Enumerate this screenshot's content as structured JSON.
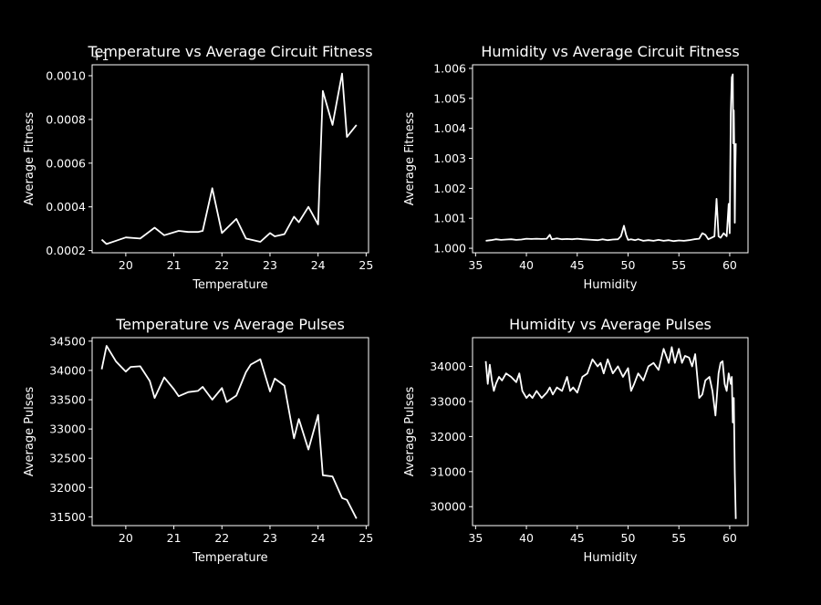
{
  "chart_data": [
    {
      "type": "line",
      "title": "Temperature vs Average Circuit Fitness",
      "xlabel": "Temperature",
      "ylabel": "Average Fitness",
      "y_offset_label": "+1",
      "xlim": [
        19.3,
        25.05
      ],
      "ylim": [
        0.00019,
        0.00105
      ],
      "xticks": [
        20,
        21,
        22,
        23,
        24,
        25
      ],
      "xtick_labels": [
        "20",
        "21",
        "22",
        "23",
        "24",
        "25"
      ],
      "yticks": [
        0.0002,
        0.0004,
        0.0006,
        0.0008,
        0.001
      ],
      "ytick_labels": [
        "0.0002",
        "0.0004",
        "0.0006",
        "0.0008",
        "0.0010"
      ],
      "grid": false,
      "x": [
        19.5,
        19.6,
        19.8,
        20.0,
        20.3,
        20.6,
        20.8,
        21.1,
        21.3,
        21.5,
        21.6,
        21.8,
        22.0,
        22.3,
        22.5,
        22.8,
        23.0,
        23.1,
        23.3,
        23.5,
        23.6,
        23.8,
        24.0,
        24.1,
        24.3,
        24.5,
        24.6,
        24.8
      ],
      "y": [
        0.00025,
        0.00023,
        0.000245,
        0.00026,
        0.000255,
        0.000305,
        0.00027,
        0.00029,
        0.000285,
        0.000285,
        0.00029,
        0.000485,
        0.00028,
        0.000345,
        0.000255,
        0.00024,
        0.00028,
        0.000265,
        0.000275,
        0.000355,
        0.00033,
        0.0004,
        0.00032,
        0.00093,
        0.000775,
        0.00101,
        0.00072,
        0.000775
      ]
    },
    {
      "type": "line",
      "title": "Humidity vs Average Circuit Fitness",
      "xlabel": "Humidity",
      "ylabel": "Average Fitness",
      "xlim": [
        34.7,
        61.8
      ],
      "ylim": [
        0.99985,
        1.00612
      ],
      "xticks": [
        35,
        40,
        45,
        50,
        55,
        60
      ],
      "xtick_labels": [
        "35",
        "40",
        "45",
        "50",
        "55",
        "60"
      ],
      "yticks": [
        1.0,
        1.001,
        1.002,
        1.003,
        1.004,
        1.005,
        1.006
      ],
      "ytick_labels": [
        "1.000",
        "1.001",
        "1.002",
        "1.003",
        "1.004",
        "1.005",
        "1.006"
      ],
      "grid": false,
      "x": [
        36.0,
        36.5,
        37.0,
        37.5,
        38.0,
        38.5,
        39.0,
        39.5,
        40.0,
        40.5,
        41.0,
        41.5,
        42.0,
        42.3,
        42.5,
        43.0,
        43.5,
        44.0,
        44.5,
        45.0,
        45.5,
        46.0,
        46.5,
        47.0,
        47.5,
        48.0,
        48.5,
        49.0,
        49.3,
        49.6,
        49.8,
        50.0,
        50.3,
        50.7,
        51.0,
        51.5,
        52.0,
        52.5,
        53.0,
        53.5,
        54.0,
        54.5,
        55.0,
        55.5,
        56.0,
        56.5,
        57.0,
        57.3,
        57.6,
        57.9,
        58.2,
        58.5,
        58.7,
        58.9,
        59.1,
        59.4,
        59.7,
        59.9,
        60.0,
        60.1,
        60.2,
        60.3,
        60.35,
        60.4,
        60.45,
        60.5,
        60.55,
        60.6
      ],
      "y": [
        1.00025,
        1.00027,
        1.0003,
        1.00028,
        1.00029,
        1.0003,
        1.00028,
        1.00029,
        1.00032,
        1.00031,
        1.00032,
        1.00031,
        1.00032,
        1.00045,
        1.0003,
        1.00033,
        1.0003,
        1.00031,
        1.0003,
        1.00032,
        1.0003,
        1.00029,
        1.00028,
        1.00027,
        1.0003,
        1.00027,
        1.00029,
        1.0003,
        1.0004,
        1.00075,
        1.00045,
        1.00028,
        1.0003,
        1.00027,
        1.0003,
        1.00025,
        1.00027,
        1.00025,
        1.00028,
        1.00025,
        1.00027,
        1.00024,
        1.00026,
        1.00025,
        1.00027,
        1.0003,
        1.00032,
        1.0005,
        1.00045,
        1.0003,
        1.00035,
        1.0004,
        1.00165,
        1.0004,
        1.00035,
        1.0005,
        1.0004,
        1.00148,
        1.0005,
        1.0045,
        1.0057,
        1.0058,
        1.0035,
        1.0046,
        1.0032,
        1.00085,
        1.0026,
        1.0035
      ]
    },
    {
      "type": "line",
      "title": "Temperature vs Average Pulses",
      "xlabel": "Temperature",
      "ylabel": "Average Pulses",
      "xlim": [
        19.3,
        25.05
      ],
      "ylim": [
        31350,
        34560
      ],
      "xticks": [
        20,
        21,
        22,
        23,
        24,
        25
      ],
      "xtick_labels": [
        "20",
        "21",
        "22",
        "23",
        "24",
        "25"
      ],
      "yticks": [
        31500,
        32000,
        32500,
        33000,
        33500,
        34000,
        34500
      ],
      "ytick_labels": [
        "31500",
        "32000",
        "32500",
        "33000",
        "33500",
        "34000",
        "34500"
      ],
      "grid": false,
      "x": [
        19.5,
        19.6,
        19.8,
        20.0,
        20.1,
        20.3,
        20.5,
        20.6,
        20.8,
        21.0,
        21.1,
        21.3,
        21.5,
        21.6,
        21.8,
        22.0,
        22.1,
        22.3,
        22.5,
        22.6,
        22.8,
        23.0,
        23.1,
        23.3,
        23.5,
        23.6,
        23.8,
        24.0,
        24.1,
        24.3,
        24.5,
        24.6,
        24.8
      ],
      "y": [
        34020,
        34420,
        34150,
        33980,
        34060,
        34070,
        33820,
        33530,
        33880,
        33680,
        33560,
        33630,
        33650,
        33720,
        33500,
        33700,
        33460,
        33570,
        33970,
        34100,
        34190,
        33640,
        33860,
        33740,
        32840,
        33170,
        32650,
        33240,
        32210,
        32190,
        31820,
        31790,
        31470
      ]
    },
    {
      "type": "line",
      "title": "Humidity vs Average Pulses",
      "xlabel": "Humidity",
      "ylabel": "Average Pulses",
      "xlim": [
        34.7,
        61.8
      ],
      "ylim": [
        29460,
        34820
      ],
      "xticks": [
        35,
        40,
        45,
        50,
        55,
        60
      ],
      "xtick_labels": [
        "35",
        "40",
        "45",
        "50",
        "55",
        "60"
      ],
      "yticks": [
        30000,
        31000,
        32000,
        33000,
        34000
      ],
      "ytick_labels": [
        "30000",
        "31000",
        "32000",
        "33000",
        "34000"
      ],
      "grid": false,
      "x": [
        36.0,
        36.2,
        36.4,
        36.6,
        36.8,
        37.0,
        37.3,
        37.6,
        38.0,
        38.5,
        39.0,
        39.3,
        39.6,
        40.0,
        40.3,
        40.6,
        41.0,
        41.5,
        42.0,
        42.3,
        42.6,
        43.0,
        43.5,
        44.0,
        44.3,
        44.6,
        45.0,
        45.5,
        46.0,
        46.5,
        47.0,
        47.3,
        47.6,
        48.0,
        48.5,
        49.0,
        49.5,
        50.0,
        50.3,
        50.6,
        51.0,
        51.5,
        52.0,
        52.5,
        53.0,
        53.5,
        54.0,
        54.3,
        54.6,
        55.0,
        55.3,
        55.6,
        56.0,
        56.3,
        56.6,
        57.0,
        57.3,
        57.6,
        58.0,
        58.3,
        58.6,
        58.9,
        59.1,
        59.3,
        59.5,
        59.7,
        59.9,
        60.1,
        60.2,
        60.3,
        60.4,
        60.5,
        60.6
      ],
      "y": [
        34150,
        33500,
        34050,
        33600,
        33300,
        33500,
        33700,
        33600,
        33800,
        33700,
        33550,
        33800,
        33300,
        33100,
        33200,
        33100,
        33300,
        33100,
        33250,
        33400,
        33200,
        33400,
        33300,
        33700,
        33300,
        33400,
        33250,
        33700,
        33800,
        34200,
        34000,
        34100,
        33800,
        34200,
        33800,
        34000,
        33700,
        33950,
        33300,
        33500,
        33800,
        33600,
        34000,
        34100,
        33900,
        34500,
        34100,
        34550,
        34100,
        34500,
        34100,
        34300,
        34250,
        34000,
        34350,
        33100,
        33200,
        33600,
        33700,
        33300,
        32600,
        33800,
        34100,
        34150,
        33500,
        33300,
        33800,
        33500,
        33700,
        32400,
        33100,
        30950,
        29650
      ]
    }
  ]
}
